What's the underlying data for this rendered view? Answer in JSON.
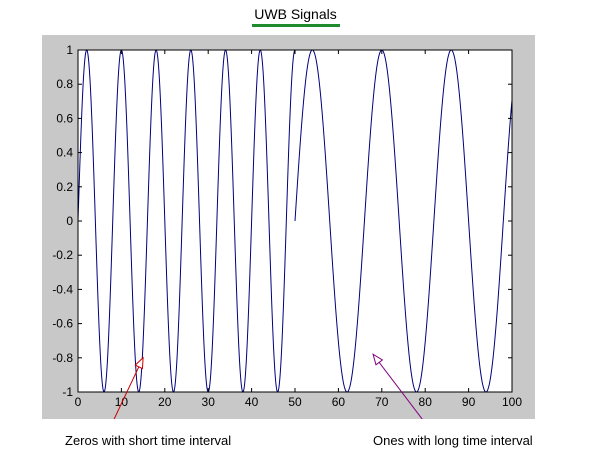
{
  "chart_data": {
    "type": "line",
    "title": "UWB Signals",
    "xlabel": "",
    "ylabel": "",
    "xlim": [
      0,
      100
    ],
    "ylim": [
      -1,
      1
    ],
    "xticks": [
      0,
      10,
      20,
      30,
      40,
      50,
      60,
      70,
      80,
      90,
      100
    ],
    "yticks": [
      -1,
      -0.8,
      -0.6,
      -0.4,
      -0.2,
      0,
      0.2,
      0.4,
      0.6,
      0.8,
      1
    ],
    "xtick_labels": [
      "0",
      "10",
      "20",
      "30",
      "40",
      "50",
      "60",
      "70",
      "80",
      "90",
      "100"
    ],
    "ytick_labels": [
      "-1",
      "-0.8",
      "-0.6",
      "-0.4",
      "-0.2",
      "0",
      "0.2",
      "0.4",
      "0.6",
      "0.8",
      "1"
    ],
    "grid": false,
    "series": [
      {
        "color": "#00007f",
        "segments": [
          {
            "x_range": [
              0,
              50
            ],
            "period": 8,
            "phase_deg": 0,
            "amplitude": 1,
            "note_label": "Zeros  with short time interval"
          },
          {
            "x_range": [
              50,
              100
            ],
            "period": 16,
            "phase_deg": 0,
            "amplitude": 1,
            "note_label": "Ones with long time interval"
          }
        ]
      }
    ],
    "annotations": [
      {
        "text": "Zeros  with short time interval",
        "arrow_to": [
          15,
          -0.8
        ],
        "arrow_color": "#cc0000"
      },
      {
        "text": "Ones with long time interval",
        "arrow_to": [
          68,
          -0.78
        ],
        "arrow_color": "#7f007f"
      }
    ]
  }
}
